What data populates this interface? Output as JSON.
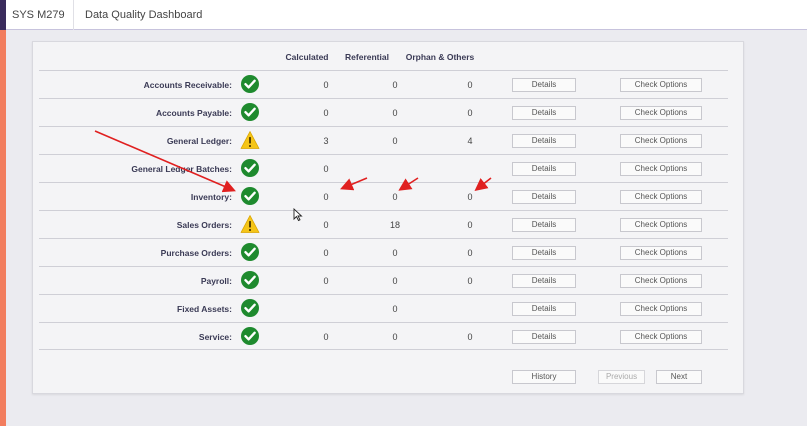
{
  "header": {
    "system": "SYS M279",
    "title": "Data Quality Dashboard"
  },
  "columns": {
    "calculated": "Calculated",
    "referential": "Referential",
    "orphan": "Orphan & Others"
  },
  "rows": [
    {
      "label": "Accounts Receivable:",
      "status": "ok",
      "calculated": "0",
      "referential": "0",
      "orphan": "0",
      "details": "Details",
      "check": "Check Options"
    },
    {
      "label": "Accounts Payable:",
      "status": "ok",
      "calculated": "0",
      "referential": "0",
      "orphan": "0",
      "details": "Details",
      "check": "Check Options"
    },
    {
      "label": "General Ledger:",
      "status": "warning",
      "calculated": "3",
      "referential": "0",
      "orphan": "4",
      "details": "Details",
      "check": "Check Options"
    },
    {
      "label": "General Ledger Batches:",
      "status": "ok",
      "calculated": "0",
      "referential": "",
      "orphan": "",
      "details": "Details",
      "check": "Check Options"
    },
    {
      "label": "Inventory:",
      "status": "ok",
      "calculated": "0",
      "referential": "0",
      "orphan": "0",
      "details": "Details",
      "check": "Check Options"
    },
    {
      "label": "Sales Orders:",
      "status": "warning",
      "calculated": "0",
      "referential": "18",
      "orphan": "0",
      "details": "Details",
      "check": "Check Options"
    },
    {
      "label": "Purchase Orders:",
      "status": "ok",
      "calculated": "0",
      "referential": "0",
      "orphan": "0",
      "details": "Details",
      "check": "Check Options"
    },
    {
      "label": "Payroll:",
      "status": "ok",
      "calculated": "0",
      "referential": "0",
      "orphan": "0",
      "details": "Details",
      "check": "Check Options"
    },
    {
      "label": "Fixed Assets:",
      "status": "ok",
      "calculated": "",
      "referential": "0",
      "orphan": "",
      "details": "Details",
      "check": "Check Options"
    },
    {
      "label": "Service:",
      "status": "ok",
      "calculated": "0",
      "referential": "0",
      "orphan": "0",
      "details": "Details",
      "check": "Check Options"
    }
  ],
  "footer": {
    "history": "History",
    "previous": "Previous",
    "next": "Next"
  },
  "colors": {
    "accent_strip": "#f27d5e",
    "ok_icon": "#1e8a2e",
    "warning_icon": "#f5c518",
    "annotation_arrow": "#e02020"
  }
}
